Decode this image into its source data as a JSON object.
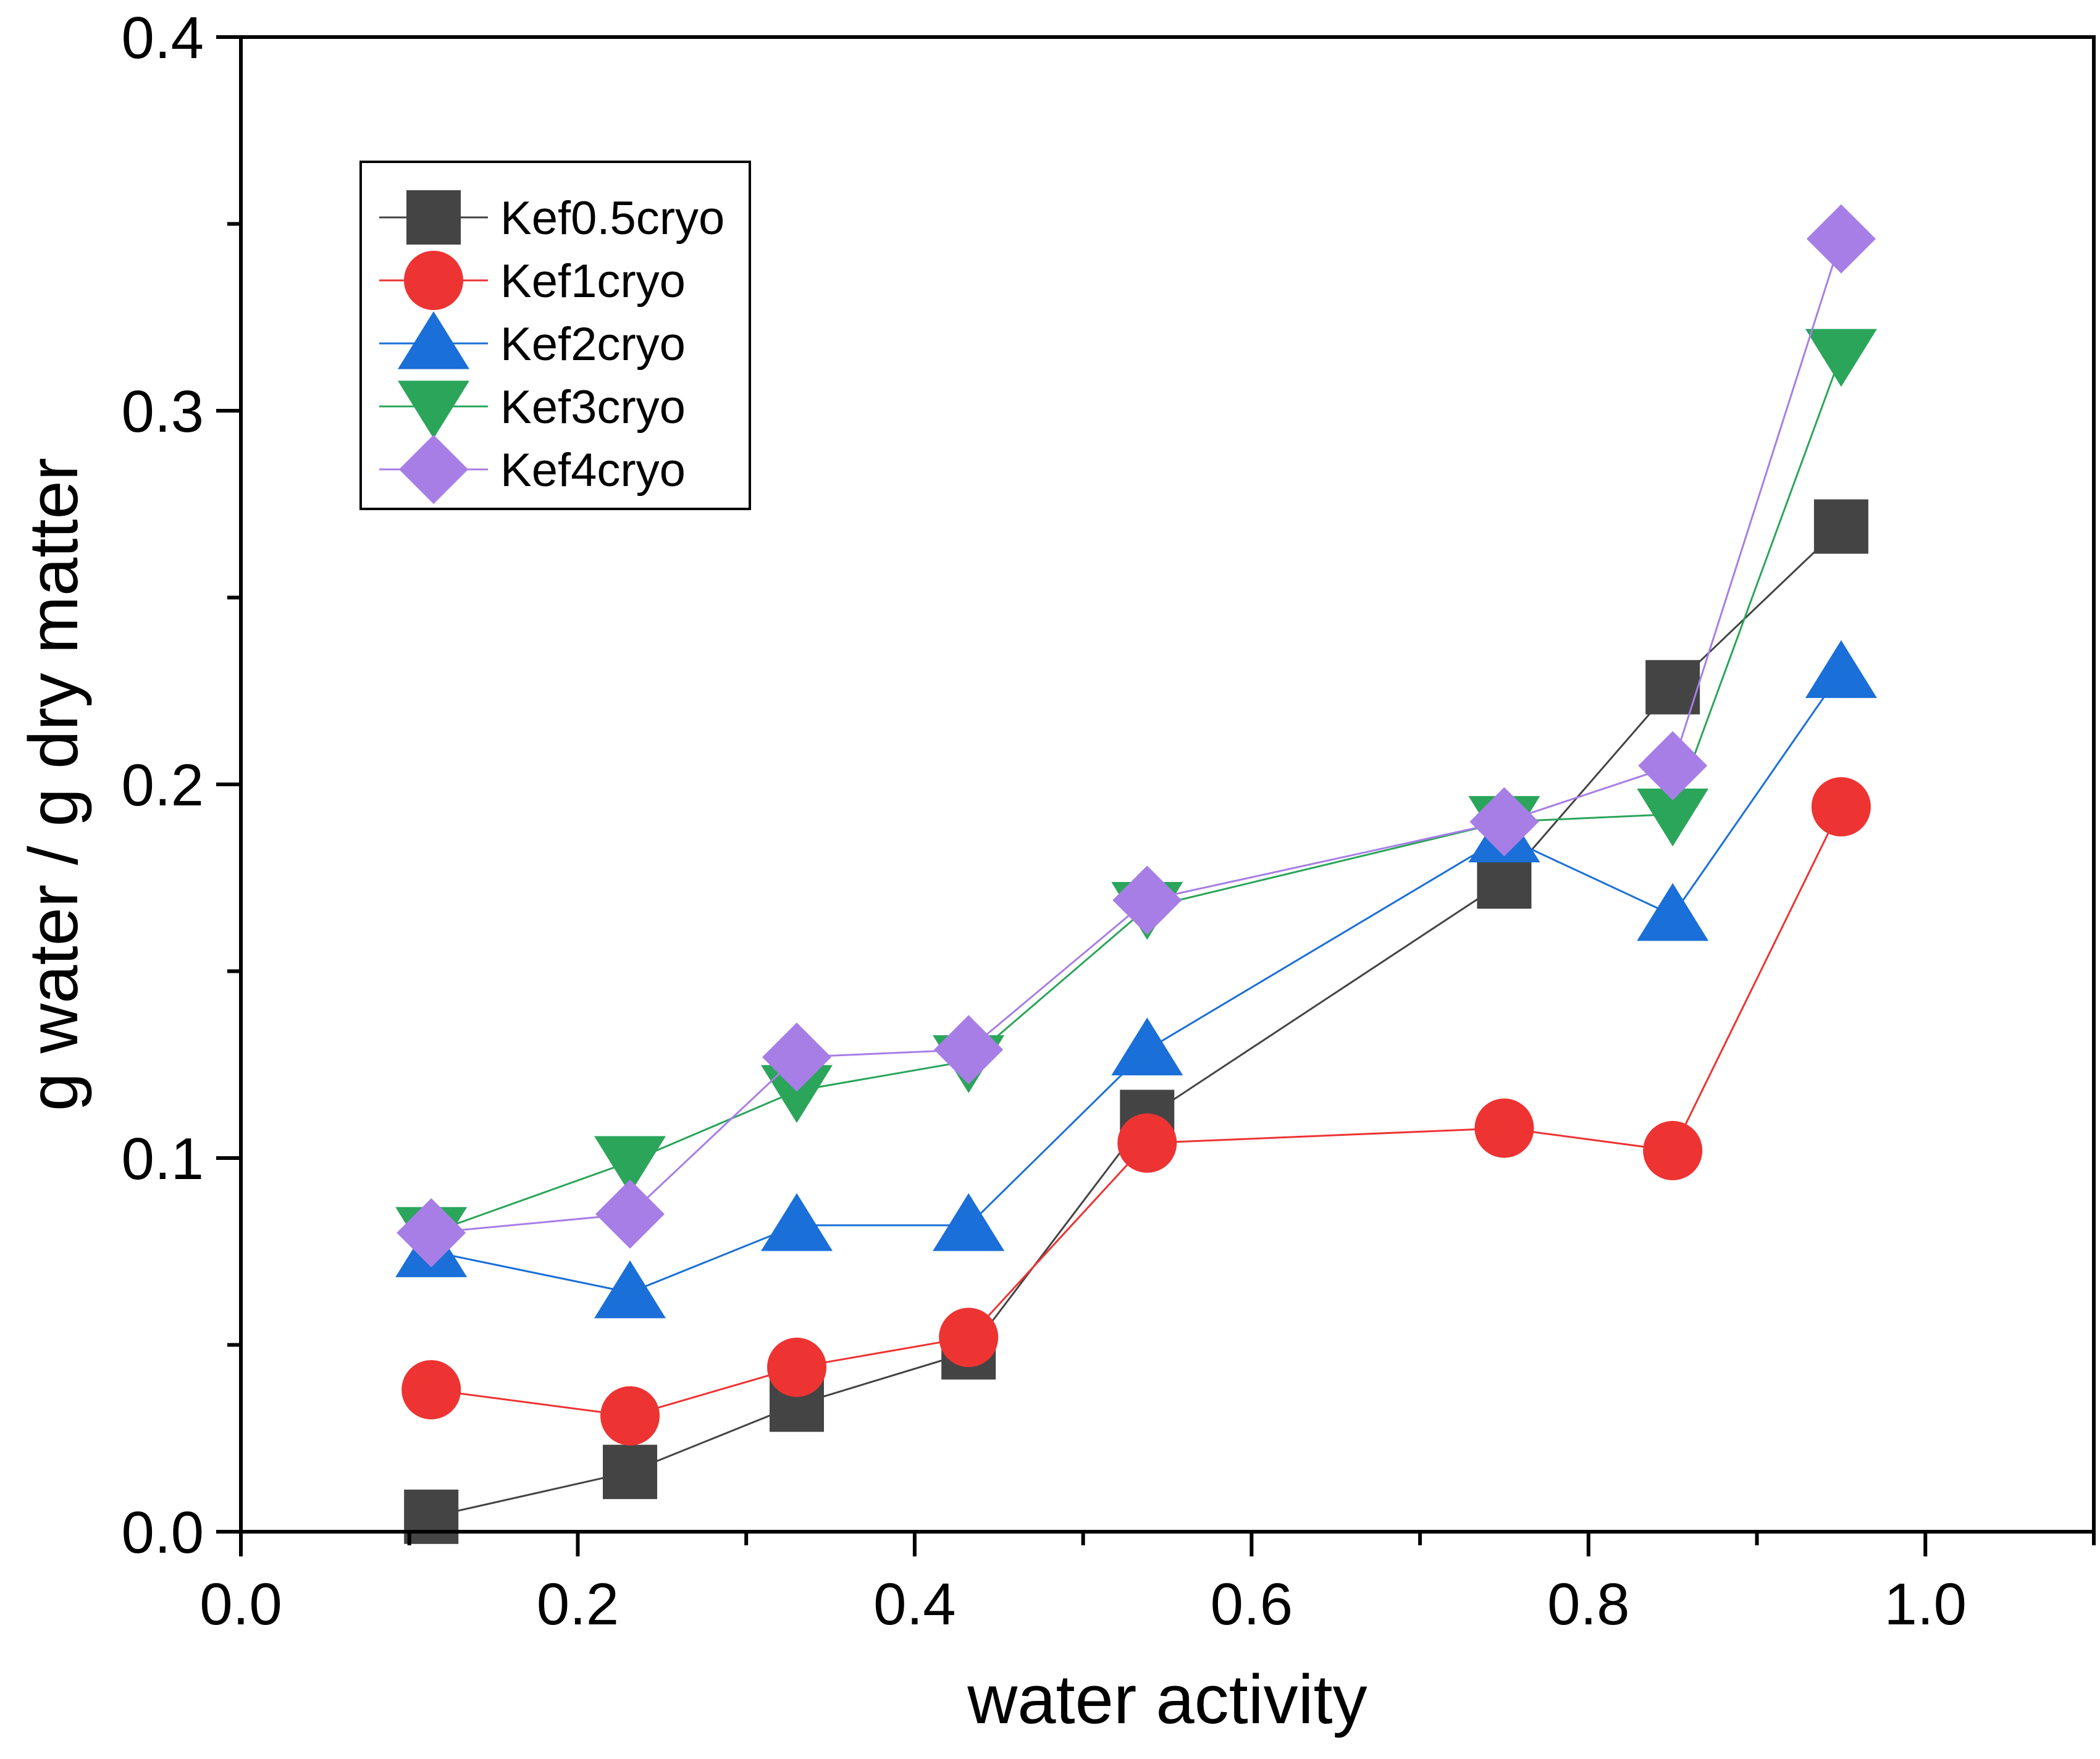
{
  "chart_data": {
    "type": "line",
    "title": "",
    "xlabel": "water activity",
    "ylabel": "g water / g dry matter",
    "xlim": [
      0.0,
      1.1
    ],
    "ylim": [
      0.0,
      0.4
    ],
    "xticks": [
      0.0,
      0.2,
      0.4,
      0.6,
      0.8,
      1.0
    ],
    "xtick_labels": [
      "0.0",
      "0.2",
      "0.4",
      "0.6",
      "0.8",
      "1.0"
    ],
    "xminor": [
      0.1,
      0.3,
      0.5,
      0.7,
      0.9,
      1.1
    ],
    "yticks": [
      0.0,
      0.1,
      0.2,
      0.3,
      0.4
    ],
    "ytick_labels": [
      "0.0",
      "0.1",
      "0.2",
      "0.3",
      "0.4"
    ],
    "yminor": [
      0.05,
      0.15,
      0.25,
      0.35
    ],
    "grid": false,
    "legend_position": "top-left",
    "x": [
      0.113,
      0.231,
      0.33,
      0.432,
      0.538,
      0.75,
      0.85,
      0.95
    ],
    "series": [
      {
        "name": "Kef0.5cryo",
        "marker": "square",
        "color": "#444444",
        "values": [
          0.004,
          0.016,
          0.034,
          0.048,
          0.111,
          0.174,
          0.226,
          0.269
        ]
      },
      {
        "name": "Kef1cryo",
        "marker": "circle",
        "color": "#ee3333",
        "values": [
          0.038,
          0.031,
          0.044,
          0.052,
          0.104,
          0.108,
          0.102,
          0.194
        ]
      },
      {
        "name": "Kef2cryo",
        "marker": "triangle-up",
        "color": "#1a6fd8",
        "values": [
          0.075,
          0.064,
          0.082,
          0.082,
          0.129,
          0.186,
          0.165,
          0.23
        ]
      },
      {
        "name": "Kef3cryo",
        "marker": "triangle-down",
        "color": "#2aa55a",
        "values": [
          0.08,
          0.099,
          0.118,
          0.126,
          0.167,
          0.19,
          0.192,
          0.315
        ]
      },
      {
        "name": "Kef4cryo",
        "marker": "diamond",
        "color": "#a77ee6",
        "values": [
          0.08,
          0.085,
          0.127,
          0.129,
          0.169,
          0.19,
          0.205,
          0.346
        ]
      }
    ]
  }
}
